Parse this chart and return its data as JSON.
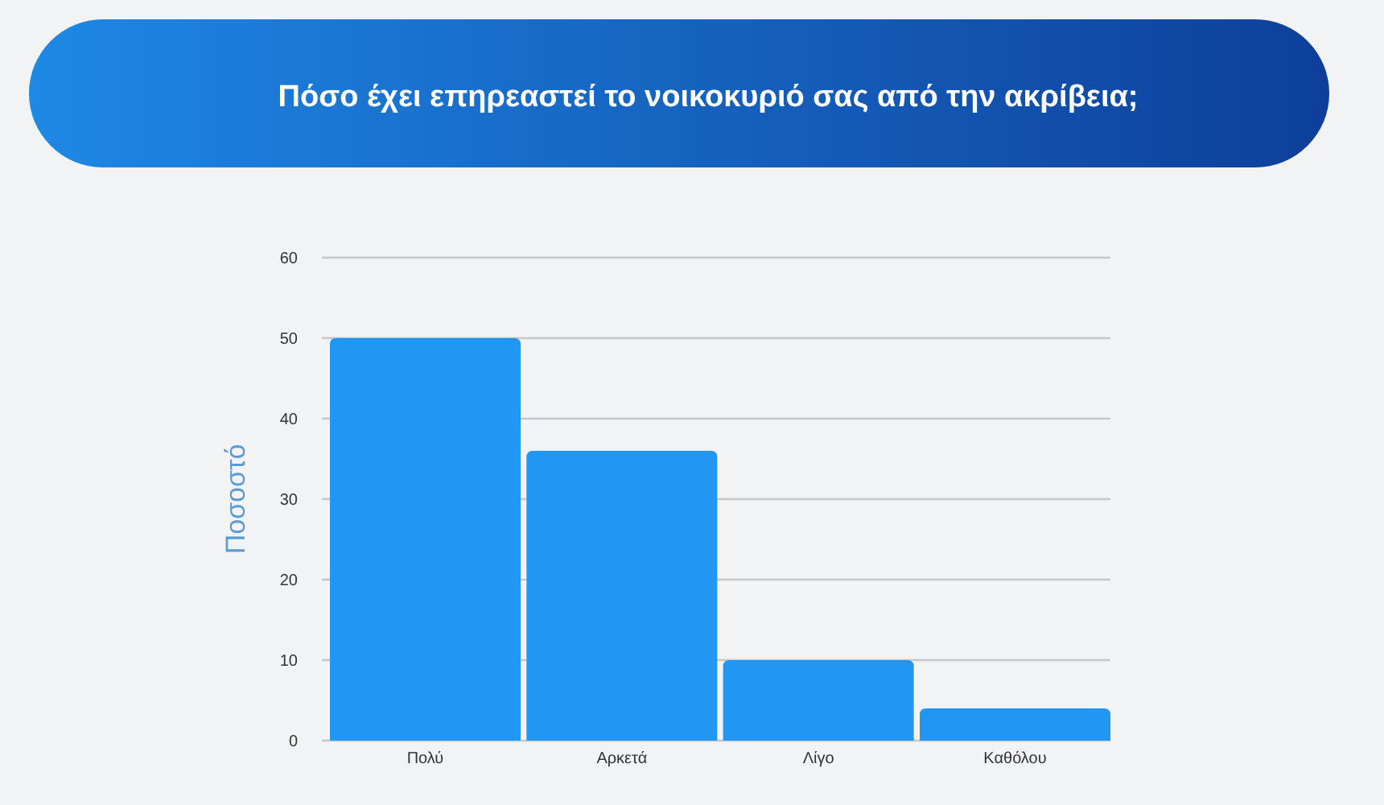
{
  "chart_data": {
    "type": "bar",
    "title": "Πόσο έχει επηρεαστεί το νοικοκυριό σας από την ακρίβεια;",
    "ylabel": "Ποσοστό",
    "categories": [
      "Πολύ",
      "Αρκετά",
      "Λίγο",
      "Καθόλου"
    ],
    "values": [
      50,
      36,
      10,
      4
    ],
    "color": "#2196f3",
    "ylim": [
      0,
      60
    ],
    "yticks": [
      0,
      10,
      20,
      30,
      40,
      50,
      60
    ],
    "grid": "y"
  }
}
